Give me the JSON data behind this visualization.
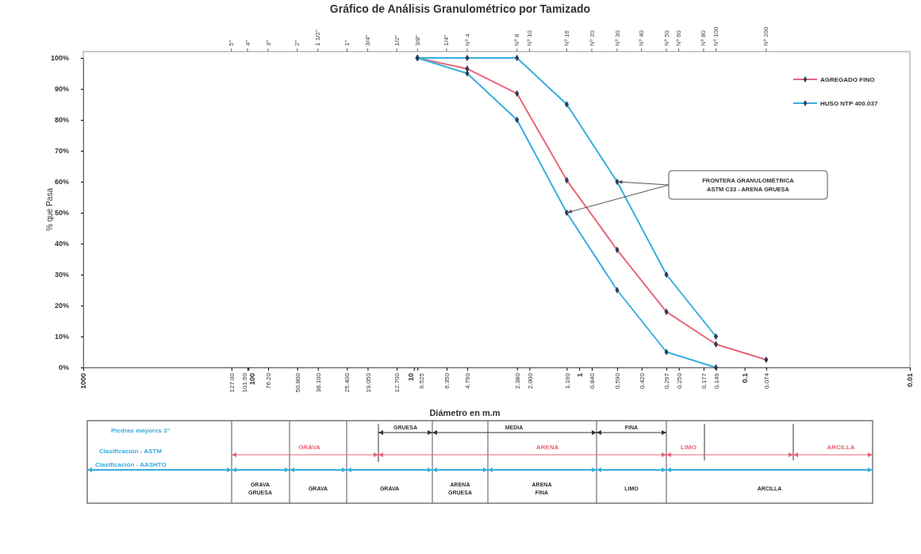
{
  "chart_data": {
    "type": "line",
    "title": "Gráfico de Análisis Granulométrico por Tamizado",
    "xlabel": "Diámetro en m.m",
    "ylabel": "% que Pasa",
    "log": "x",
    "xlim": [
      1000,
      0.01
    ],
    "ylim": [
      0,
      100
    ],
    "xticks": [
      1000,
      {
        "value": 127,
        "label": "127.00"
      },
      {
        "value": 101.6,
        "label": "101.60"
      },
      100,
      {
        "value": 76.2,
        "label": "76.20"
      },
      {
        "value": 50.8,
        "label": "50.800"
      },
      {
        "value": 38.1,
        "label": "38.100"
      },
      {
        "value": 25.4,
        "label": "25.400"
      },
      {
        "value": 19.05,
        "label": "19.050"
      },
      {
        "value": 12.7,
        "label": "12.700"
      },
      10,
      {
        "value": 9.525,
        "label": "9.525"
      },
      {
        "value": 6.35,
        "label": "6.350"
      },
      {
        "value": 4.76,
        "label": "4.760"
      },
      {
        "value": 2.38,
        "label": "2.380"
      },
      {
        "value": 2,
        "label": "2.000"
      },
      {
        "value": 1.19,
        "label": "1.190"
      },
      1,
      {
        "value": 0.84,
        "label": "0.840"
      },
      {
        "value": 0.59,
        "label": "0.590"
      },
      {
        "value": 0.42,
        "label": "0.420"
      },
      {
        "value": 0.297,
        "label": "0.297"
      },
      {
        "value": 0.25,
        "label": "0.250"
      },
      {
        "value": 0.177,
        "label": "0.177"
      },
      {
        "value": 0.149,
        "label": "0.149"
      },
      0.1,
      {
        "value": 0.074,
        "label": "0.074"
      },
      0.01
    ],
    "yticks": [
      {
        "value": 0,
        "label": "0%"
      },
      {
        "value": 10,
        "label": "10%"
      },
      {
        "value": 20,
        "label": "20%"
      },
      {
        "value": 30,
        "label": "30%"
      },
      {
        "value": 40,
        "label": "40%"
      },
      {
        "value": 50,
        "label": "50%"
      },
      {
        "value": 60,
        "label": "60%"
      },
      {
        "value": 70,
        "label": "70%"
      },
      {
        "value": 80,
        "label": "80%"
      },
      {
        "value": 90,
        "label": "90%"
      },
      {
        "value": 100,
        "label": "100%"
      }
    ],
    "grid": false,
    "legend": "top right",
    "marker": "diamond",
    "line_style": "solid",
    "series": [
      {
        "name": "AGREGADO FINO",
        "color": "#e8677a",
        "x": [
          9.525,
          4.76,
          2.38,
          1.19,
          0.59,
          0.297,
          0.149,
          0.074
        ],
        "values": [
          100,
          96.5,
          88.5,
          60.5,
          38,
          18,
          7.5,
          2.5
        ]
      },
      {
        "name": "HUSO NTP 400.037",
        "color": "#3aaedc",
        "x": [
          9.525,
          4.76,
          2.38,
          1.19,
          0.59,
          0.297,
          0.149
        ],
        "values": [
          100,
          100,
          100,
          85,
          60,
          30,
          10
        ]
      },
      {
        "color": "#3aaedc",
        "x": [
          9.525,
          4.76,
          2.38,
          1.19,
          0.59,
          0.297,
          0.149
        ],
        "values": [
          100,
          95,
          80,
          50,
          25,
          5,
          0
        ]
      }
    ],
    "annotations": [
      "FRONTERA GRANULOMÉTRICA ASTM C33 - ARENA GRUESA",
      "Piedras mayores 3\"",
      "Clasificación - ASTM",
      "Clasificación - AASHTO",
      "GRUESA",
      "MEDIA",
      "FINA",
      "GRAVA",
      "ARENA",
      "LIMO",
      "ARCILLA",
      "GRAVA GRUESA",
      "GRAVA",
      "GRAVA",
      "ARENA GRUESA",
      "ARENA FINA",
      "LIMO",
      "ARCILLA",
      "5\"",
      "4\"",
      "3\"",
      "2\"",
      "1 1/2\"",
      "1\"",
      "3/4\"",
      "1/2\"",
      "3/8\"",
      "1/4\"",
      "Nº 4",
      "Nº 8",
      "Nº 10",
      "Nº 16",
      "Nº 20",
      "Nº 30",
      "Nº 40",
      "Nº 50",
      "Nº 60",
      "Nº 80",
      "Nº 100",
      "Nº 200"
    ]
  }
}
